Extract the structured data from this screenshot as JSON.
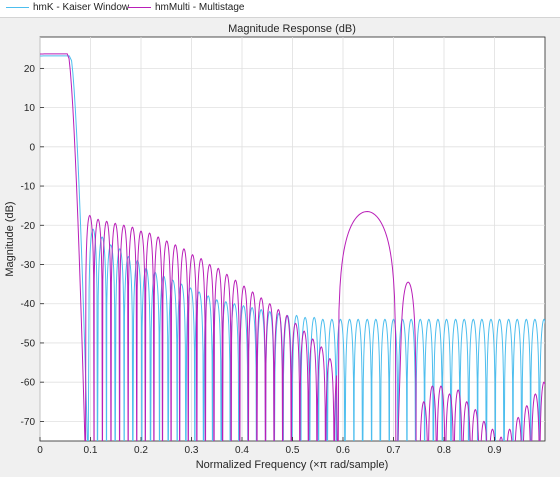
{
  "legend": {
    "items": [
      {
        "label": "hmK - Kaiser Window",
        "color": "#4dbeee"
      },
      {
        "label": "hmMulti - Multistage",
        "color": "#b91fb8"
      }
    ]
  },
  "chart_data": {
    "type": "line",
    "title": "Magnitude Response (dB)",
    "xlabel": "Normalized Frequency (×π rad/sample)",
    "ylabel": "Magnitude (dB)",
    "xlim": [
      0,
      1
    ],
    "ylim": [
      -75,
      28
    ],
    "xticks": [
      0,
      0.1,
      0.2,
      0.3,
      0.4,
      0.5,
      0.6,
      0.7,
      0.8,
      0.9
    ],
    "yticks": [
      20,
      10,
      0,
      -10,
      -20,
      -30,
      -40,
      -50,
      -60,
      -70
    ],
    "xtick_labels": [
      "0",
      "0.1",
      "0.2",
      "0.3",
      "0.4",
      "0.5",
      "0.6",
      "0.7",
      "0.8",
      "0.9"
    ],
    "ytick_labels": [
      "20",
      "10",
      "0",
      "-10",
      "-20",
      "-30",
      "-40",
      "-50",
      "-60",
      "-70"
    ],
    "grid": true,
    "legend_position": "top",
    "series": [
      {
        "name": "hmK - Kaiser Window",
        "color": "#4dbeee",
        "passband_db": 23.5,
        "passband_edge": 0.06,
        "stopband_start": 0.095,
        "first_sidelobe_db": -21,
        "sidelobe_floor_db": -44,
        "lobe_width": 0.0175,
        "peaks": [
          [
            0.105,
            -21
          ],
          [
            0.123,
            -23
          ],
          [
            0.14,
            -25
          ],
          [
            0.158,
            -26
          ],
          [
            0.175,
            -28
          ],
          [
            0.193,
            -29
          ],
          [
            0.21,
            -31
          ],
          [
            0.228,
            -32
          ],
          [
            0.245,
            -33
          ],
          [
            0.263,
            -34
          ],
          [
            0.28,
            -35
          ],
          [
            0.298,
            -36
          ],
          [
            0.315,
            -37
          ],
          [
            0.333,
            -38
          ],
          [
            0.35,
            -39
          ],
          [
            0.368,
            -39.5
          ],
          [
            0.385,
            -40
          ],
          [
            0.403,
            -40.5
          ],
          [
            0.42,
            -41
          ],
          [
            0.438,
            -41.5
          ],
          [
            0.455,
            -42
          ],
          [
            0.473,
            -42.5
          ],
          [
            0.49,
            -43
          ],
          [
            0.508,
            -43
          ],
          [
            0.525,
            -43.5
          ],
          [
            0.543,
            -43.5
          ],
          [
            0.56,
            -44
          ],
          [
            0.578,
            -44
          ],
          [
            0.595,
            -44
          ],
          [
            0.613,
            -44
          ],
          [
            0.63,
            -44
          ],
          [
            0.648,
            -44
          ],
          [
            0.665,
            -44
          ],
          [
            0.683,
            -44
          ],
          [
            0.7,
            -44
          ],
          [
            0.718,
            -44
          ],
          [
            0.735,
            -44
          ],
          [
            0.753,
            -44
          ],
          [
            0.77,
            -44
          ],
          [
            0.788,
            -44
          ],
          [
            0.805,
            -44
          ],
          [
            0.823,
            -44
          ],
          [
            0.84,
            -44
          ],
          [
            0.858,
            -44
          ],
          [
            0.875,
            -44
          ],
          [
            0.893,
            -44
          ],
          [
            0.91,
            -44
          ],
          [
            0.928,
            -44
          ],
          [
            0.945,
            -44
          ],
          [
            0.963,
            -44
          ],
          [
            0.98,
            -44
          ],
          [
            0.998,
            -44
          ]
        ]
      },
      {
        "name": "hmMulti - Multistage",
        "color": "#b91fb8",
        "passband_db": 24,
        "passband_edge": 0.055,
        "stopband_start": 0.09,
        "first_sidelobe_db": -17,
        "image_peak_db": -16.5,
        "image_peak_x": 0.645,
        "image_band": [
          0.59,
          0.705
        ],
        "second_image_peak_db": -34.5,
        "second_image_peak_x": 0.728,
        "lobe_width": 0.0172,
        "peaks": [
          [
            0.0985,
            -17.5
          ],
          [
            0.115,
            -18.5
          ],
          [
            0.132,
            -19
          ],
          [
            0.149,
            -19.5
          ],
          [
            0.166,
            -20
          ],
          [
            0.183,
            -20.5
          ],
          [
            0.2,
            -21.5
          ],
          [
            0.217,
            -22
          ],
          [
            0.234,
            -23
          ],
          [
            0.251,
            -24
          ],
          [
            0.268,
            -25
          ],
          [
            0.285,
            -26
          ],
          [
            0.302,
            -27.5
          ],
          [
            0.319,
            -28.5
          ],
          [
            0.336,
            -30
          ],
          [
            0.353,
            -31
          ],
          [
            0.37,
            -32.5
          ],
          [
            0.387,
            -34
          ],
          [
            0.404,
            -35.5
          ],
          [
            0.421,
            -37
          ],
          [
            0.438,
            -38.5
          ],
          [
            0.455,
            -40
          ],
          [
            0.472,
            -41.5
          ],
          [
            0.489,
            -43
          ],
          [
            0.506,
            -45
          ],
          [
            0.523,
            -47
          ],
          [
            0.54,
            -49
          ],
          [
            0.557,
            -51
          ],
          [
            0.574,
            -54
          ],
          [
            0.591,
            -56
          ],
          [
            0.76,
            -65
          ],
          [
            0.777,
            -61
          ],
          [
            0.794,
            -61
          ],
          [
            0.811,
            -63
          ],
          [
            0.828,
            -62
          ],
          [
            0.845,
            -65
          ],
          [
            0.862,
            -67
          ],
          [
            0.879,
            -70
          ],
          [
            0.896,
            -72
          ],
          [
            0.913,
            -74
          ],
          [
            0.93,
            -72
          ],
          [
            0.947,
            -69
          ],
          [
            0.964,
            -66
          ],
          [
            0.981,
            -63
          ],
          [
            0.998,
            -60
          ]
        ]
      }
    ]
  }
}
